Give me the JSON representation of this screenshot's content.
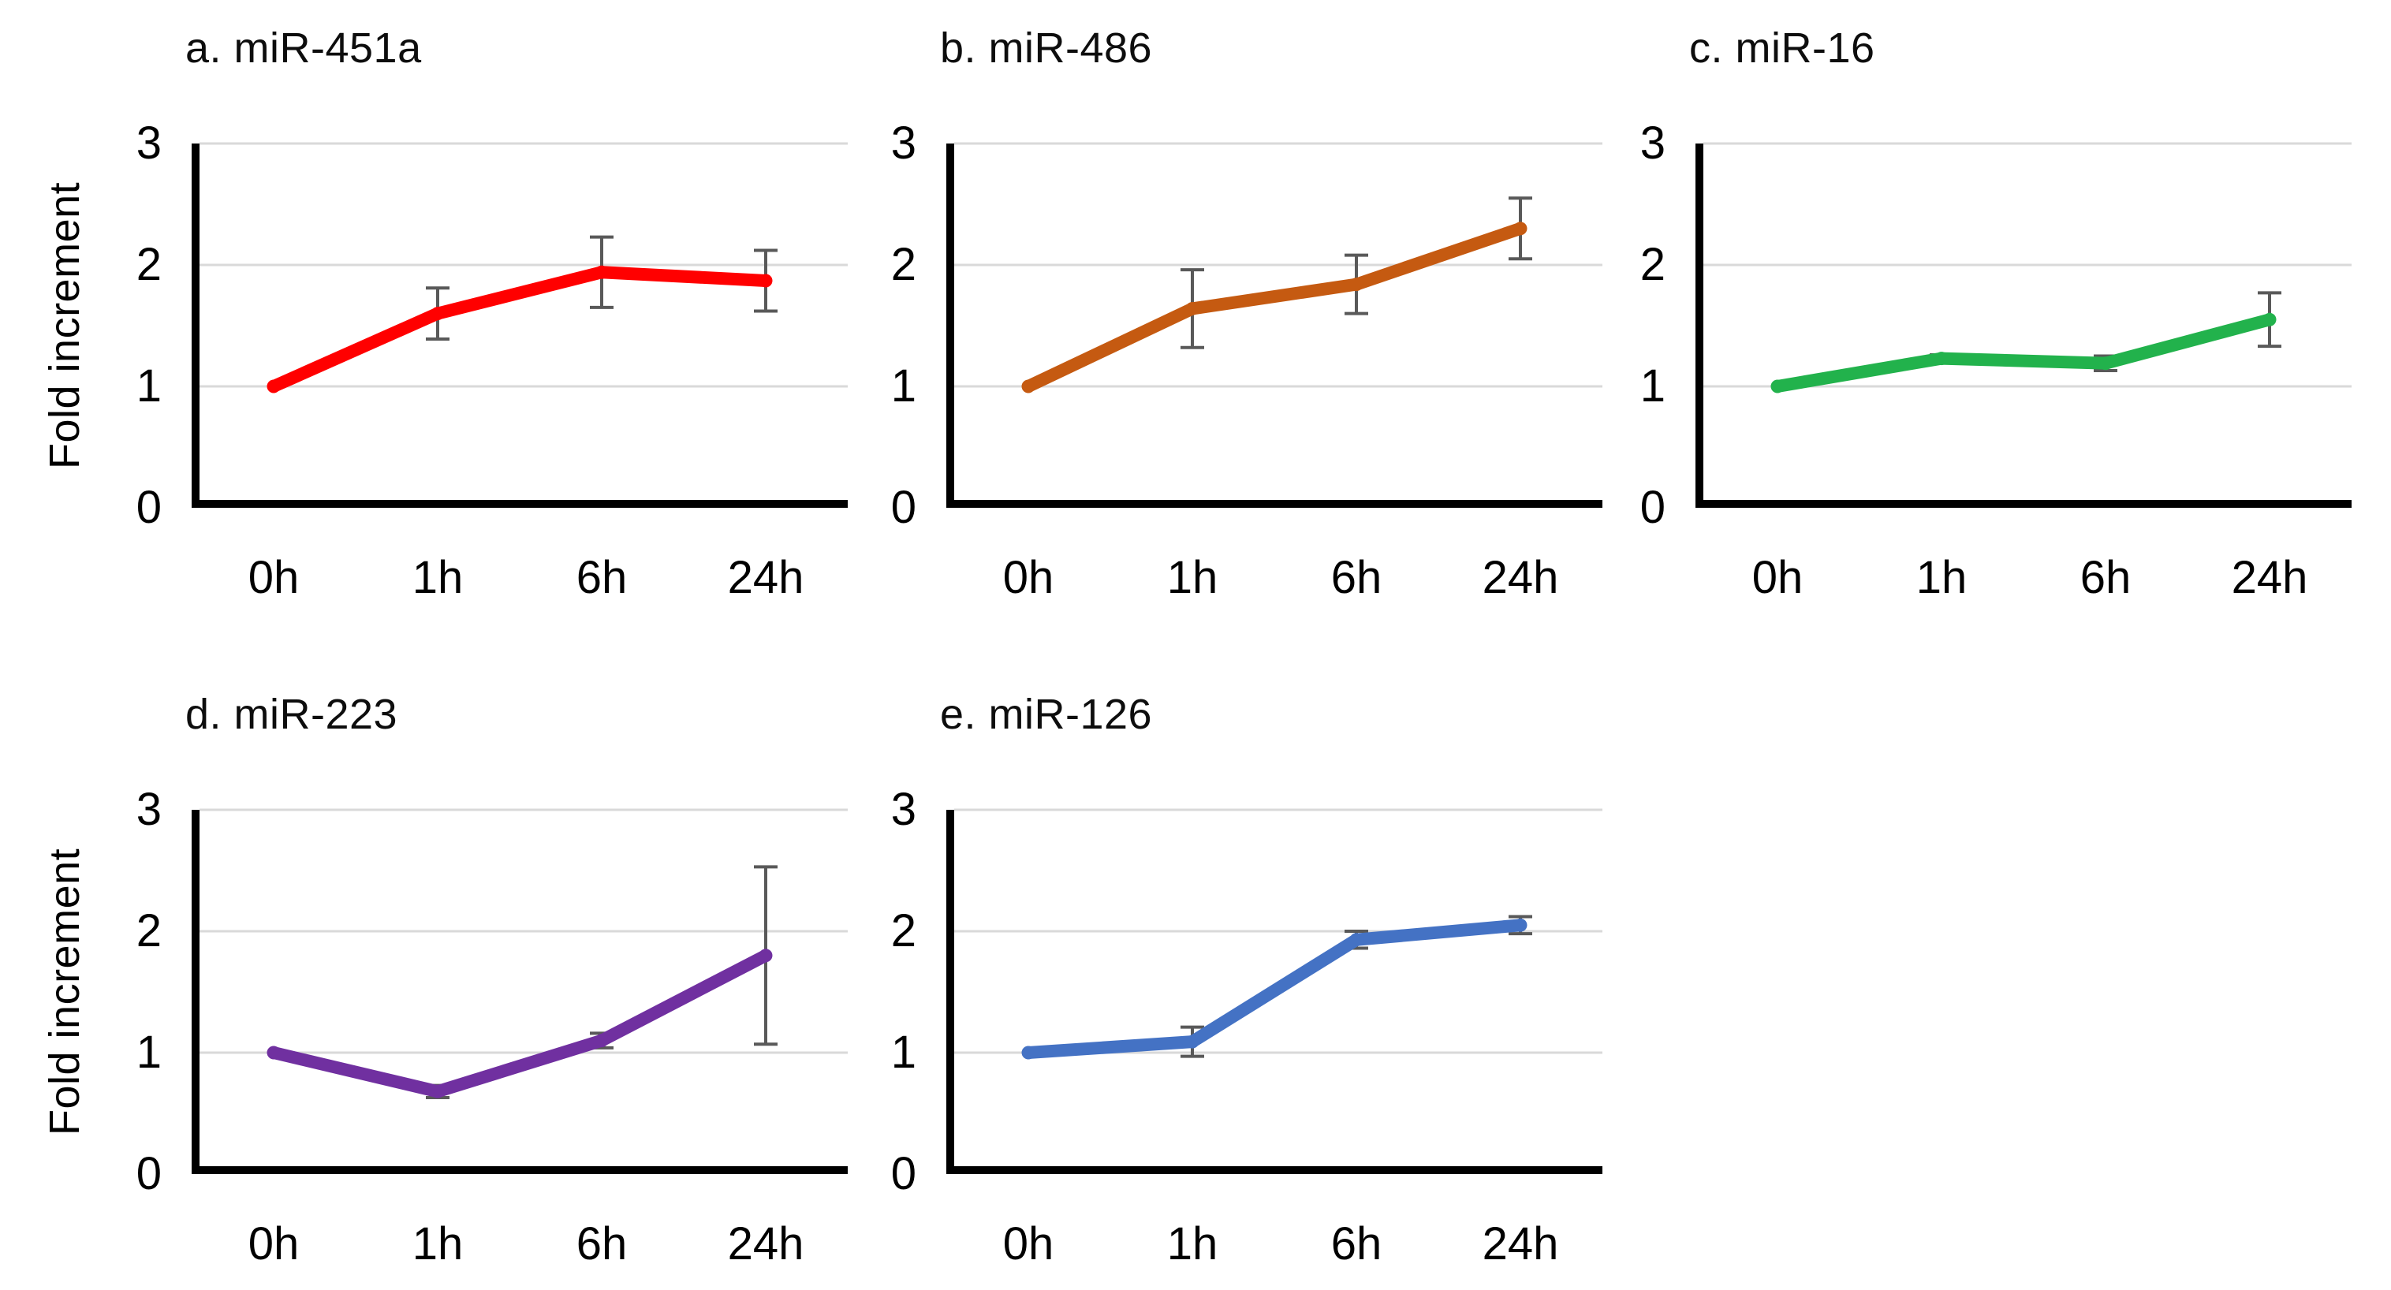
{
  "figure": {
    "ylabel": "Fold increment",
    "categories": [
      "0h",
      "1h",
      "6h",
      "24h"
    ],
    "yticks": [
      0,
      1,
      2,
      3
    ],
    "ylim": [
      0,
      3
    ],
    "grid": true,
    "legend": "none",
    "background_color": "#ffffff",
    "axis_color": "#000000",
    "gridline_color": "#d9d9d9",
    "errorbar_color": "#595959"
  },
  "chart_data": [
    {
      "type": "line",
      "id": "a",
      "title": "a. miR-451a",
      "color": "#ff0000",
      "categories": [
        "0h",
        "1h",
        "6h",
        "24h"
      ],
      "values": [
        1.0,
        1.6,
        1.94,
        1.87
      ],
      "errors": [
        0,
        0.21,
        0.29,
        0.25
      ],
      "xlabel": "",
      "ylabel": "Fold increment",
      "ylim": [
        0,
        3
      ],
      "yticks": [
        0,
        1,
        2,
        3
      ]
    },
    {
      "type": "line",
      "id": "b",
      "title": "b. miR-486",
      "color": "#c55a11",
      "categories": [
        "0h",
        "1h",
        "6h",
        "24h"
      ],
      "values": [
        1.0,
        1.64,
        1.84,
        2.3
      ],
      "errors": [
        0,
        0.32,
        0.24,
        0.25
      ],
      "xlabel": "",
      "ylabel": "",
      "ylim": [
        0,
        3
      ],
      "yticks": [
        0,
        1,
        2,
        3
      ]
    },
    {
      "type": "line",
      "id": "c",
      "title": "c. miR-16",
      "color": "#22b24c",
      "categories": [
        "0h",
        "1h",
        "6h",
        "24h"
      ],
      "values": [
        1.0,
        1.23,
        1.19,
        1.55
      ],
      "errors": [
        0,
        0.03,
        0.06,
        0.22
      ],
      "xlabel": "",
      "ylabel": "",
      "ylim": [
        0,
        3
      ],
      "yticks": [
        0,
        1,
        2,
        3
      ]
    },
    {
      "type": "line",
      "id": "d",
      "title": "d. miR-223",
      "color": "#7030a0",
      "categories": [
        "0h",
        "1h",
        "6h",
        "24h"
      ],
      "values": [
        1.0,
        0.68,
        1.1,
        1.8
      ],
      "errors": [
        0,
        0.05,
        0.06,
        0.73
      ],
      "xlabel": "",
      "ylabel": "Fold increment",
      "ylim": [
        0,
        3
      ],
      "yticks": [
        0,
        1,
        2,
        3
      ]
    },
    {
      "type": "line",
      "id": "e",
      "title": "e. miR-126",
      "color": "#4472c4",
      "categories": [
        "0h",
        "1h",
        "6h",
        "24h"
      ],
      "values": [
        1.0,
        1.09,
        1.93,
        2.05
      ],
      "errors": [
        0,
        0.12,
        0.07,
        0.07
      ],
      "xlabel": "",
      "ylabel": "",
      "ylim": [
        0,
        3
      ],
      "yticks": [
        0,
        1,
        2,
        3
      ]
    }
  ]
}
